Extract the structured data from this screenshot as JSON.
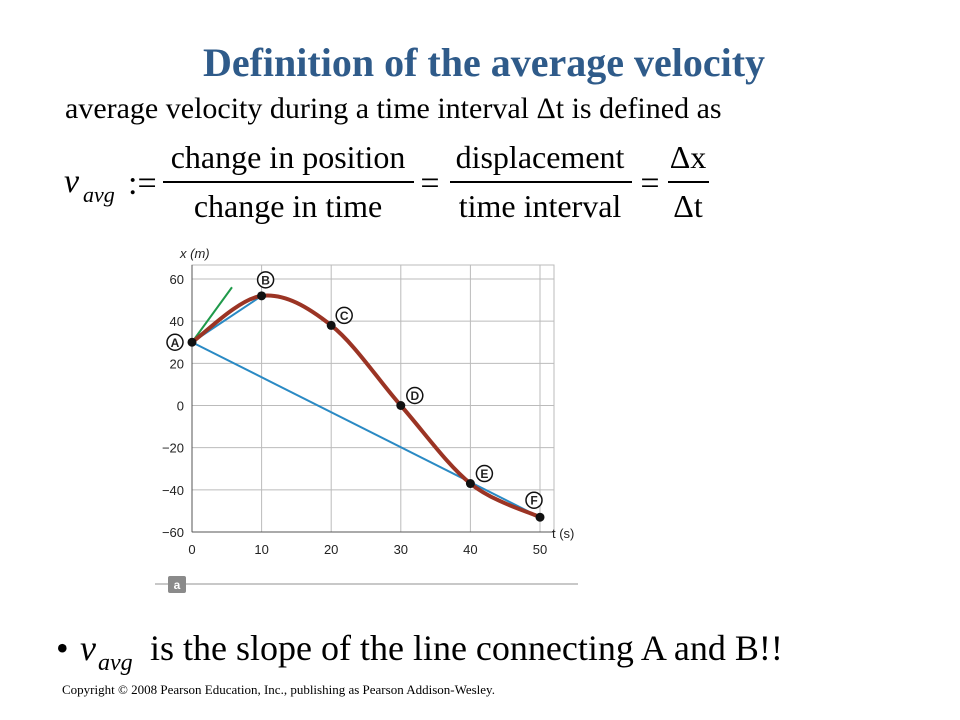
{
  "title": "Definition of the average velocity",
  "intro": "average velocity during a time interval Δt is defined as",
  "formula": {
    "symbol": "v",
    "subscript": "avg",
    "define": ":=",
    "equals": "=",
    "num1": "change in position",
    "den1": "change in time",
    "num2": "displacement",
    "den2": "time interval",
    "num3": "Δx",
    "den3": "Δt"
  },
  "chart_data": {
    "type": "line",
    "xlabel": "t (s)",
    "ylabel": "x (m)",
    "x": [
      0,
      10,
      20,
      30,
      40,
      50
    ],
    "values": [
      30,
      52,
      38,
      0,
      -37,
      -53
    ],
    "color": "#9b3424",
    "point_labels": [
      "A",
      "B",
      "C",
      "D",
      "E",
      "F"
    ],
    "xlim": [
      0,
      50
    ],
    "xticks": [
      0,
      10,
      20,
      30,
      40,
      50
    ],
    "ylim": [
      -60,
      60
    ],
    "yticks": [
      {
        "value": -60,
        "label": "−60"
      },
      {
        "value": -40,
        "label": "−40"
      },
      {
        "value": -20,
        "label": "−20"
      },
      0,
      20,
      40,
      60
    ],
    "grid": true,
    "panel_label": "a"
  },
  "bullet": {
    "symbol": "v",
    "subscript": "avg",
    "text": "is the slope of the line connecting A and B!!"
  },
  "copyright": "Copyright © 2008 Pearson Education, Inc., publishing as Pearson Addison-Wesley."
}
